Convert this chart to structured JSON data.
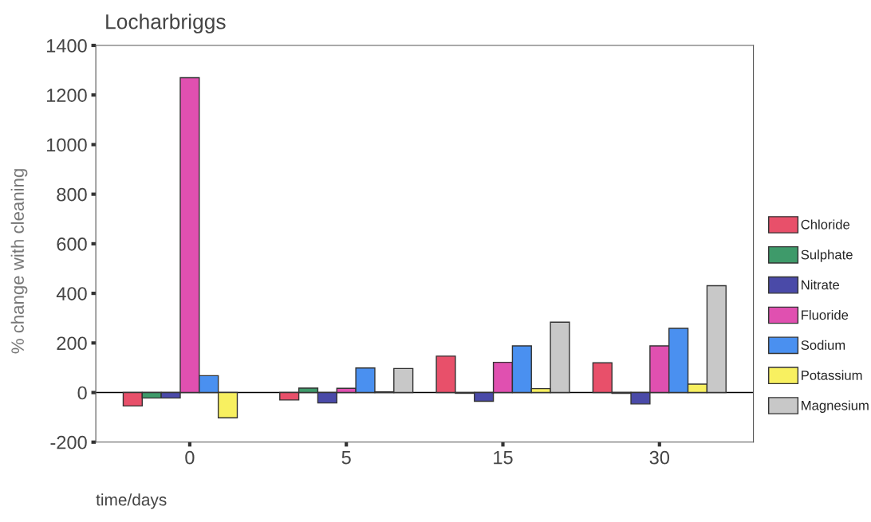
{
  "chart_data": {
    "type": "bar",
    "title": "Locharbriggs",
    "xlabel": "time/days",
    "ylabel": "% change with cleaning",
    "categories": [
      "0",
      "5",
      "15",
      "30"
    ],
    "series": [
      {
        "name": "Chloride",
        "color": "#e8506a",
        "values": [
          -54,
          -30,
          147,
          120
        ]
      },
      {
        "name": "Sulphate",
        "color": "#3e9a6a",
        "values": [
          -22,
          18,
          -3,
          -3
        ]
      },
      {
        "name": "Nitrate",
        "color": "#4a4aa8",
        "values": [
          -22,
          -42,
          -35,
          -46
        ]
      },
      {
        "name": "Fluoride",
        "color": "#e050b0",
        "values": [
          1270,
          17,
          122,
          188
        ]
      },
      {
        "name": "Sodium",
        "color": "#4a90f0",
        "values": [
          68,
          99,
          188,
          259
        ]
      },
      {
        "name": "Potassium",
        "color": "#f8f060",
        "values": [
          -102,
          3,
          16,
          34
        ]
      },
      {
        "name": "Magnesium",
        "color": "#c8c8c8",
        "values": [
          null,
          97,
          284,
          431
        ]
      }
    ],
    "ylim": [
      -200,
      1400
    ],
    "yticks": [
      -200,
      0,
      200,
      400,
      600,
      800,
      1000,
      1200,
      1400
    ],
    "ref_lines": [
      {
        "axis": "y",
        "value": 0,
        "color": "#000000"
      }
    ],
    "grid": false,
    "legend": "right"
  }
}
